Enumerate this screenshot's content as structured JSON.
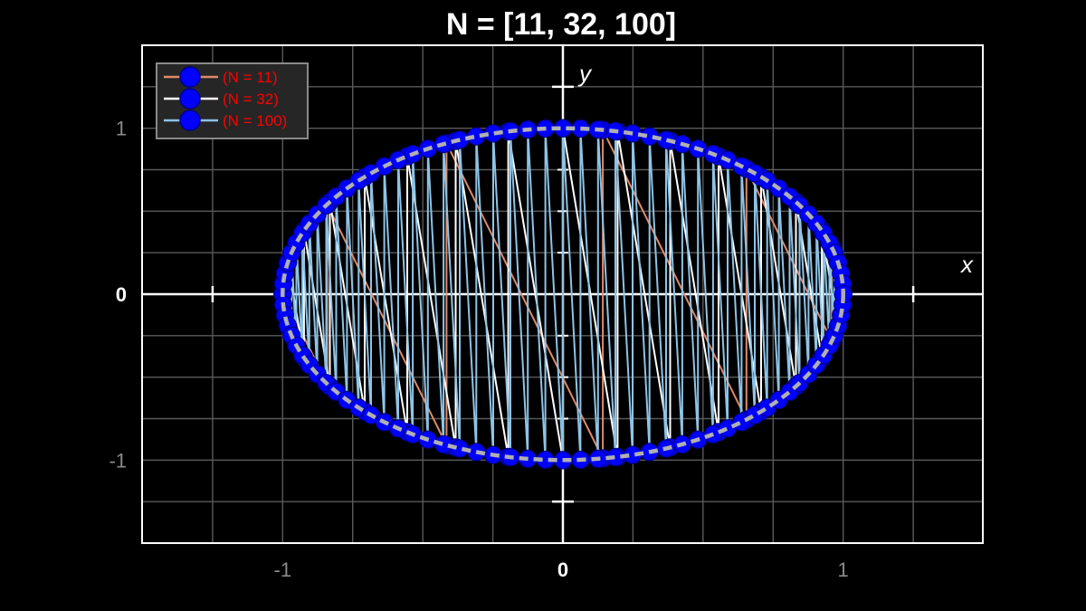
{
  "chart_data": {
    "type": "line",
    "title": "N = [11, 32, 100]",
    "xlabel": "x",
    "ylabel": "y",
    "xlim": [
      -1.5,
      1.5
    ],
    "ylim": [
      -1.5,
      1.5
    ],
    "grid": true,
    "legend_position": "top-left",
    "x_ticks": [
      {
        "value": -1,
        "label": "-1"
      },
      {
        "value": 0,
        "label": "0"
      },
      {
        "value": 1,
        "label": "1"
      }
    ],
    "y_ticks": [
      {
        "value": 1,
        "label": "1"
      },
      {
        "value": 0,
        "label": "0"
      },
      {
        "value": -1,
        "label": "-1"
      }
    ],
    "reference_circle": {
      "radius": 1,
      "color": "#b0b0b0",
      "style": "dashed"
    },
    "marker_color": "#0000ff",
    "series": [
      {
        "name": "(N = 11)",
        "points": 11,
        "color": "#e08a6a"
      },
      {
        "name": "(N = 32)",
        "points": 32,
        "color": "#ffffff"
      },
      {
        "name": "(N = 100)",
        "points": 100,
        "color": "#8ec3e6"
      }
    ],
    "legend_text_color": "#ff0000"
  }
}
